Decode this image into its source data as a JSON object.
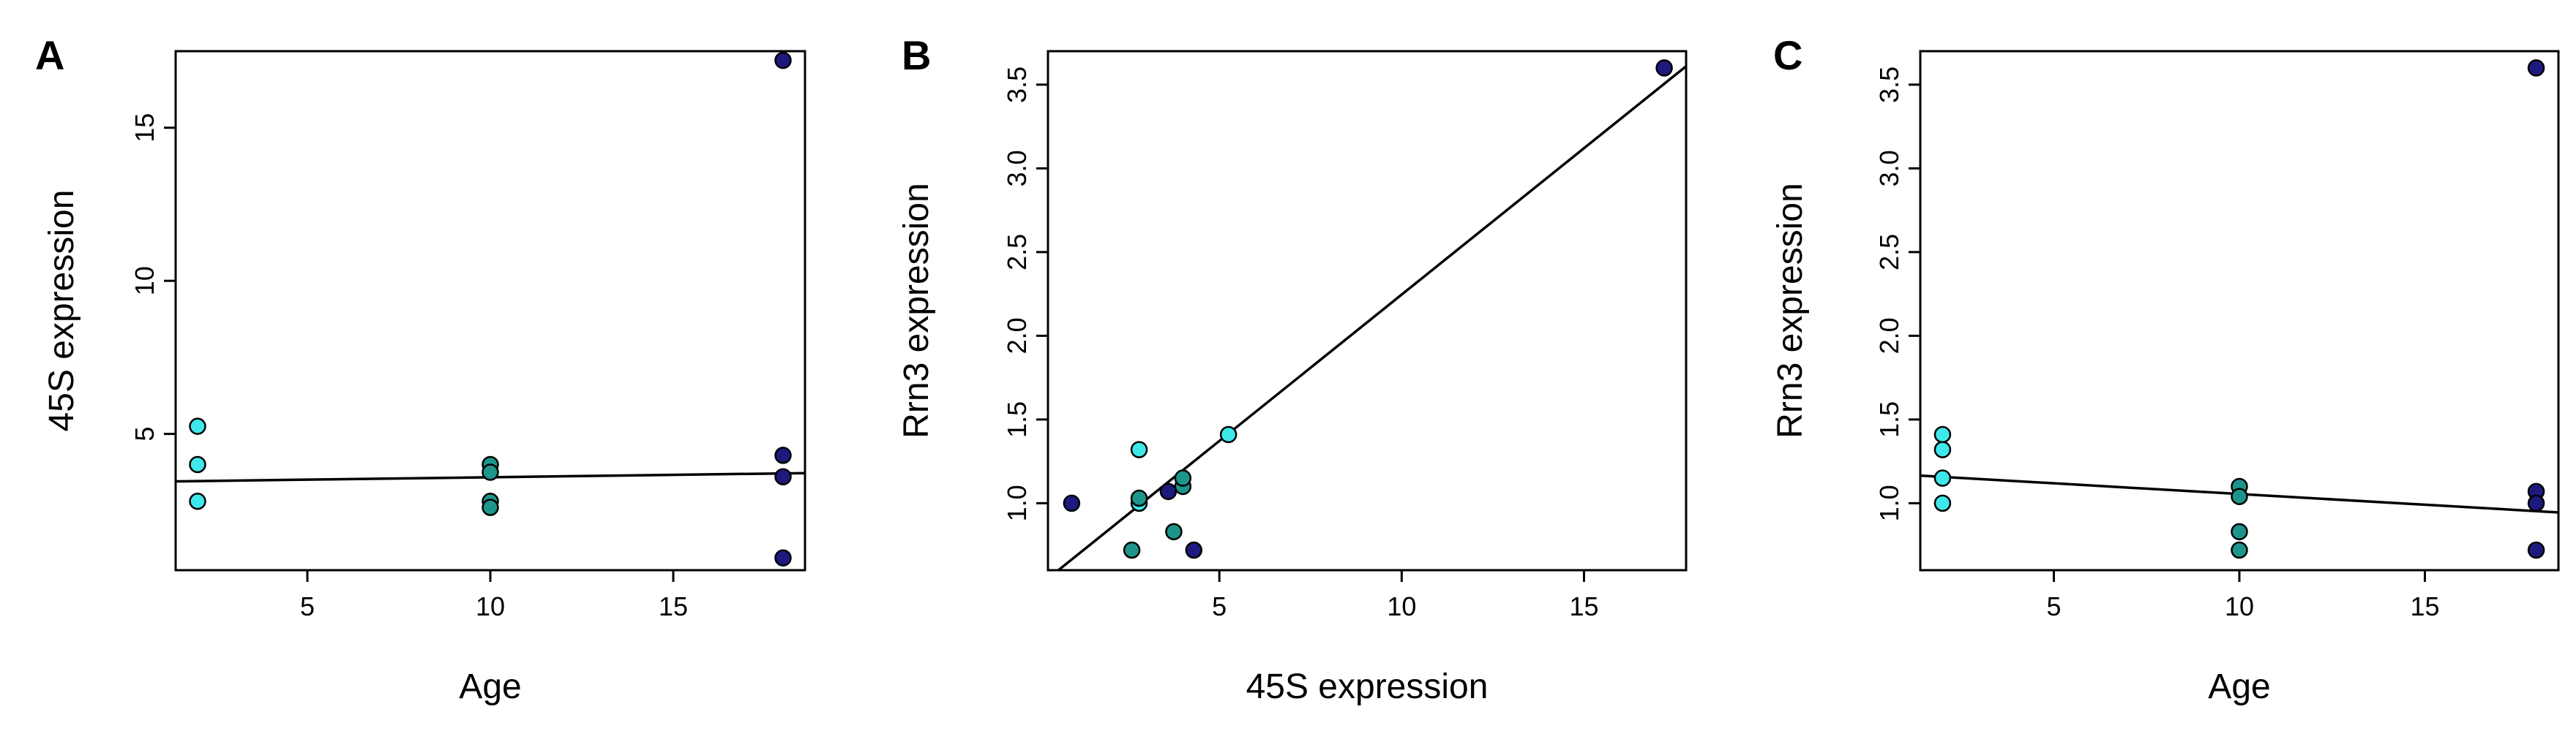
{
  "colors": {
    "age_2": "#3ee8ea",
    "age_10": "#1d958a",
    "age_18": "#1e197f"
  },
  "chart_data": [
    {
      "panel": "A",
      "type": "scatter",
      "title": "",
      "xlabel": "Age",
      "ylabel": "45S expression",
      "xlim": [
        1.4,
        18.6
      ],
      "ylim": [
        0.55,
        17.5
      ],
      "x_ticks": [
        5,
        10,
        15
      ],
      "y_ticks": [
        5,
        10,
        15
      ],
      "grid": false,
      "fit_line": [
        [
          1.4,
          3.45
        ],
        [
          18.6,
          3.72
        ]
      ],
      "points": [
        {
          "x": 2,
          "y": 5.25,
          "age": 2
        },
        {
          "x": 2,
          "y": 4.0,
          "age": 2
        },
        {
          "x": 2,
          "y": 2.8,
          "age": 2
        },
        {
          "x": 10,
          "y": 4.0,
          "age": 10
        },
        {
          "x": 10,
          "y": 3.75,
          "age": 10
        },
        {
          "x": 10,
          "y": 2.8,
          "age": 10
        },
        {
          "x": 10,
          "y": 2.6,
          "age": 10
        },
        {
          "x": 18,
          "y": 17.2,
          "age": 18
        },
        {
          "x": 18,
          "y": 4.3,
          "age": 18
        },
        {
          "x": 18,
          "y": 3.6,
          "age": 18
        },
        {
          "x": 18,
          "y": 0.95,
          "age": 18
        }
      ]
    },
    {
      "panel": "B",
      "type": "scatter",
      "title": "",
      "xlabel": "45S expression",
      "ylabel": "Rrn3 expression",
      "xlim": [
        0.3,
        17.8
      ],
      "ylim": [
        0.6,
        3.7
      ],
      "x_ticks": [
        5,
        10,
        15
      ],
      "y_ticks": [
        "1.0",
        "1.5",
        "2.0",
        "2.5",
        "3.0",
        "3.5"
      ],
      "grid": false,
      "fit_line": [
        [
          0.3,
          0.55
        ],
        [
          17.8,
          3.61
        ]
      ],
      "points": [
        {
          "x": 0.95,
          "y": 1.0,
          "age": 18
        },
        {
          "x": 17.2,
          "y": 3.6,
          "age": 18
        },
        {
          "x": 3.6,
          "y": 1.07,
          "age": 18
        },
        {
          "x": 4.3,
          "y": 0.72,
          "age": 18
        },
        {
          "x": 5.25,
          "y": 1.41,
          "age": 2
        },
        {
          "x": 2.8,
          "y": 1.32,
          "age": 2
        },
        {
          "x": 2.8,
          "y": 1.0,
          "age": 2
        },
        {
          "x": 2.6,
          "y": 0.72,
          "age": 10
        },
        {
          "x": 2.8,
          "y": 1.03,
          "age": 10
        },
        {
          "x": 3.75,
          "y": 0.83,
          "age": 10
        },
        {
          "x": 4.0,
          "y": 1.1,
          "age": 10
        },
        {
          "x": 4.0,
          "y": 1.15,
          "age": 10
        }
      ]
    },
    {
      "panel": "C",
      "type": "scatter",
      "title": "",
      "xlabel": "Age",
      "ylabel": "Rrn3 expression",
      "xlim": [
        1.4,
        18.6
      ],
      "ylim": [
        0.6,
        3.7
      ],
      "x_ticks": [
        5,
        10,
        15
      ],
      "y_ticks": [
        "1.0",
        "1.5",
        "2.0",
        "2.5",
        "3.0",
        "3.5"
      ],
      "grid": false,
      "fit_line": [
        [
          1.4,
          1.165
        ],
        [
          18.6,
          0.945
        ]
      ],
      "points": [
        {
          "x": 2,
          "y": 1.41,
          "age": 2
        },
        {
          "x": 2,
          "y": 1.32,
          "age": 2
        },
        {
          "x": 2,
          "y": 1.15,
          "age": 2
        },
        {
          "x": 2,
          "y": 1.0,
          "age": 2
        },
        {
          "x": 10,
          "y": 1.1,
          "age": 10
        },
        {
          "x": 10,
          "y": 1.04,
          "age": 10
        },
        {
          "x": 10,
          "y": 0.83,
          "age": 10
        },
        {
          "x": 10,
          "y": 0.72,
          "age": 10
        },
        {
          "x": 18,
          "y": 3.6,
          "age": 18
        },
        {
          "x": 18,
          "y": 1.07,
          "age": 18
        },
        {
          "x": 18,
          "y": 1.0,
          "age": 18
        },
        {
          "x": 18,
          "y": 0.72,
          "age": 18
        }
      ]
    }
  ]
}
